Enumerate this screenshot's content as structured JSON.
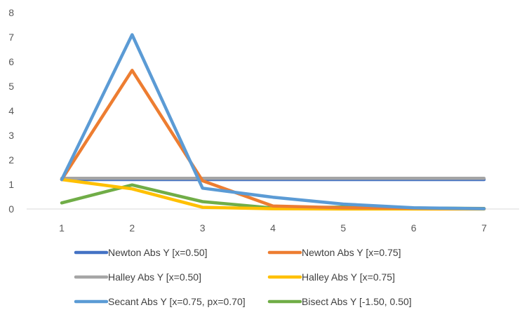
{
  "chart_data": {
    "type": "line",
    "title": "",
    "xlabel": "",
    "ylabel": "",
    "x": [
      1,
      2,
      3,
      4,
      5,
      6,
      7
    ],
    "ylim": [
      0,
      8
    ],
    "yticks": [
      0,
      1,
      2,
      3,
      4,
      5,
      6,
      7,
      8
    ],
    "grid": false,
    "legend_position": "bottom",
    "series": [
      {
        "name": "Newton Abs Y  [x=0.50]",
        "color": "#4472C4",
        "values": [
          1.2,
          1.2,
          1.2,
          1.2,
          1.2,
          1.2,
          1.2
        ]
      },
      {
        "name": "Newton Abs Y  [x=0.75]",
        "color": "#ED7D31",
        "values": [
          1.2,
          5.65,
          1.15,
          0.12,
          0.05,
          0.03,
          0.01
        ]
      },
      {
        "name": "Halley Abs Y  [x=0.50]",
        "color": "#A5A5A5",
        "values": [
          1.25,
          1.25,
          1.25,
          1.25,
          1.25,
          1.25,
          1.25
        ]
      },
      {
        "name": "Halley Abs Y  [x=0.75]",
        "color": "#FFC000",
        "values": [
          1.2,
          0.82,
          0.07,
          0.01,
          0.0,
          0.0,
          0.0
        ]
      },
      {
        "name": "Secant Abs Y  [x=0.75, px=0.70]",
        "color": "#5B9BD5",
        "values": [
          1.2,
          7.1,
          0.85,
          0.48,
          0.2,
          0.05,
          0.01
        ]
      },
      {
        "name": "Bisect Abs Y  [-1.50, 0.50]",
        "color": "#70AD47",
        "values": [
          0.25,
          0.98,
          0.3,
          0.04,
          0.08,
          0.04,
          0.02
        ]
      }
    ]
  }
}
